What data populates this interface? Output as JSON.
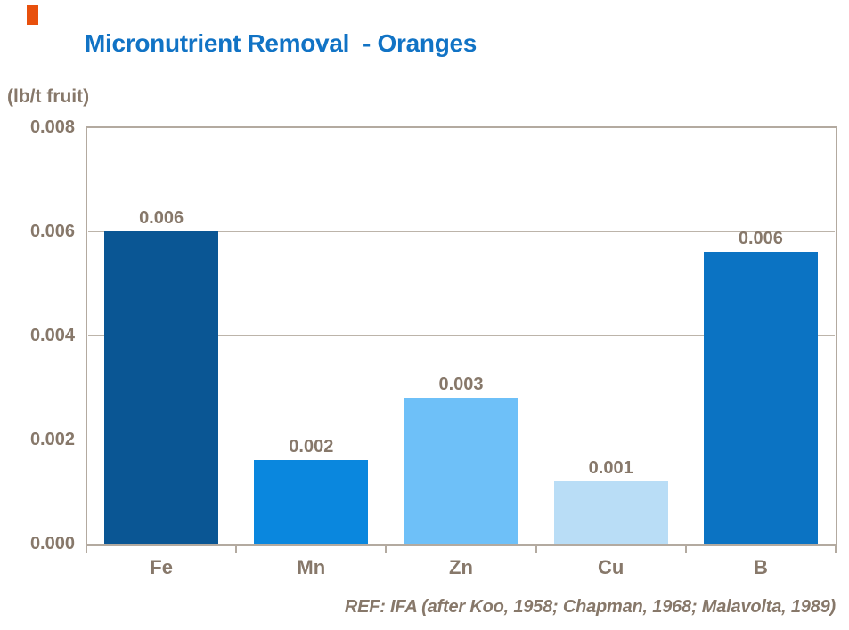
{
  "slide": {
    "background": "#FFFFFF",
    "accent_color": "#E8500D"
  },
  "title": {
    "text": "Micronutrient Removal  - Oranges",
    "color": "#1173C5"
  },
  "chart": {
    "unit_label": "(lb/t fruit)",
    "ref_note": "REF: IFA (after Koo, 1958; Chapman, 1968; Malavolta, 1989)",
    "text_color": "#87786A",
    "axis_color": "#B3AAA0",
    "grid_color": "#BCB4AA"
  },
  "chart_data": {
    "type": "bar",
    "title": "Micronutrient Removal - Oranges",
    "ylabel": "(lb/t fruit)",
    "xlabel": "",
    "categories": [
      "Fe",
      "Mn",
      "Zn",
      "Cu",
      "B"
    ],
    "values": [
      0.006,
      0.0016,
      0.0028,
      0.0012,
      0.0056
    ],
    "data_labels": [
      "0.006",
      "0.002",
      "0.003",
      "0.001",
      "0.006"
    ],
    "bar_colors": [
      "#0A5694",
      "#0A87DE",
      "#6EC0F8",
      "#B9DDF6",
      "#0B73C3"
    ],
    "ylim": [
      0,
      0.008
    ],
    "yticks": [
      {
        "value": 0.008,
        "label": "0.008"
      },
      {
        "value": 0.006,
        "label": "0.006"
      },
      {
        "value": 0.004,
        "label": "0.004"
      },
      {
        "value": 0.002,
        "label": "0.002"
      },
      {
        "value": 0.0,
        "label": "0.000"
      }
    ],
    "grid": true,
    "legend": false,
    "annotation": "REF: IFA (after Koo, 1958; Chapman, 1968; Malavolta, 1989)"
  }
}
